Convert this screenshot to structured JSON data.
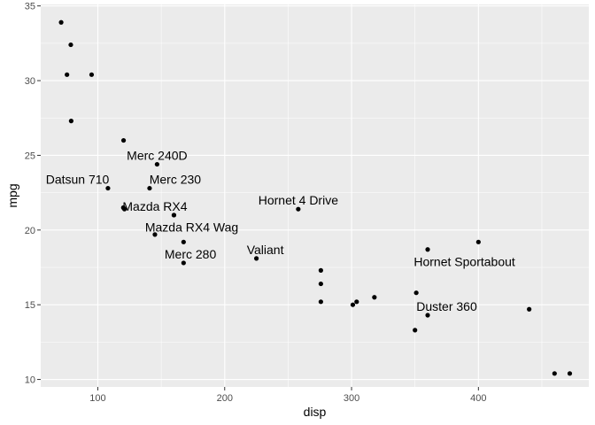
{
  "chart_data": {
    "type": "scatter",
    "title": "",
    "xlabel": "disp",
    "ylabel": "mpg",
    "xlim": [
      55,
      487
    ],
    "ylim": [
      9.5,
      35.1
    ],
    "x_ticks": [
      100,
      200,
      300,
      400
    ],
    "y_ticks": [
      10,
      15,
      20,
      25,
      30,
      35
    ],
    "grid": true,
    "legend": "none",
    "colors": {
      "panel": "#EBEBEB",
      "grid": "#FFFFFF",
      "point": "#000000",
      "tick_text": "#4D4D4D"
    },
    "points": [
      {
        "x": 71.1,
        "y": 33.9
      },
      {
        "x": 75.7,
        "y": 30.4
      },
      {
        "x": 78.7,
        "y": 32.4
      },
      {
        "x": 79.0,
        "y": 27.3
      },
      {
        "x": 95.1,
        "y": 30.4
      },
      {
        "x": 108,
        "y": 22.8
      },
      {
        "x": 120.1,
        "y": 21.5
      },
      {
        "x": 120.3,
        "y": 26.0
      },
      {
        "x": 121,
        "y": 21.4
      },
      {
        "x": 140.8,
        "y": 22.8
      },
      {
        "x": 145,
        "y": 19.7
      },
      {
        "x": 146.7,
        "y": 24.4
      },
      {
        "x": 160,
        "y": 21.0
      },
      {
        "x": 160,
        "y": 21.0
      },
      {
        "x": 167.6,
        "y": 19.2
      },
      {
        "x": 167.6,
        "y": 17.8
      },
      {
        "x": 225,
        "y": 18.1
      },
      {
        "x": 258,
        "y": 21.4
      },
      {
        "x": 275.8,
        "y": 16.4
      },
      {
        "x": 275.8,
        "y": 17.3
      },
      {
        "x": 275.8,
        "y": 15.2
      },
      {
        "x": 301,
        "y": 15.0
      },
      {
        "x": 304,
        "y": 15.2
      },
      {
        "x": 318,
        "y": 15.5
      },
      {
        "x": 350,
        "y": 13.3
      },
      {
        "x": 351,
        "y": 15.8
      },
      {
        "x": 360,
        "y": 18.7
      },
      {
        "x": 360,
        "y": 14.3
      },
      {
        "x": 400,
        "y": 19.2
      },
      {
        "x": 440,
        "y": 14.7
      },
      {
        "x": 460,
        "y": 10.4
      },
      {
        "x": 472,
        "y": 10.4
      }
    ],
    "labels": [
      {
        "text": "Merc 240D",
        "x": 146.7,
        "y": 25.0
      },
      {
        "text": "Datsun 710",
        "x": 84,
        "y": 23.4
      },
      {
        "text": "Merc 230",
        "x": 161,
        "y": 23.4
      },
      {
        "text": "Mazda RX4",
        "x": 145,
        "y": 21.6
      },
      {
        "text": "Hornet 4 Drive",
        "x": 258,
        "y": 22.0
      },
      {
        "text": "Mazda RX4 Wag",
        "x": 174,
        "y": 20.2
      },
      {
        "text": "Valiant",
        "x": 232,
        "y": 18.7
      },
      {
        "text": "Merc 280",
        "x": 173,
        "y": 18.4
      },
      {
        "text": "Hornet Sportabout",
        "x": 389,
        "y": 17.9
      },
      {
        "text": "Duster 360",
        "x": 375,
        "y": 14.9
      }
    ]
  }
}
